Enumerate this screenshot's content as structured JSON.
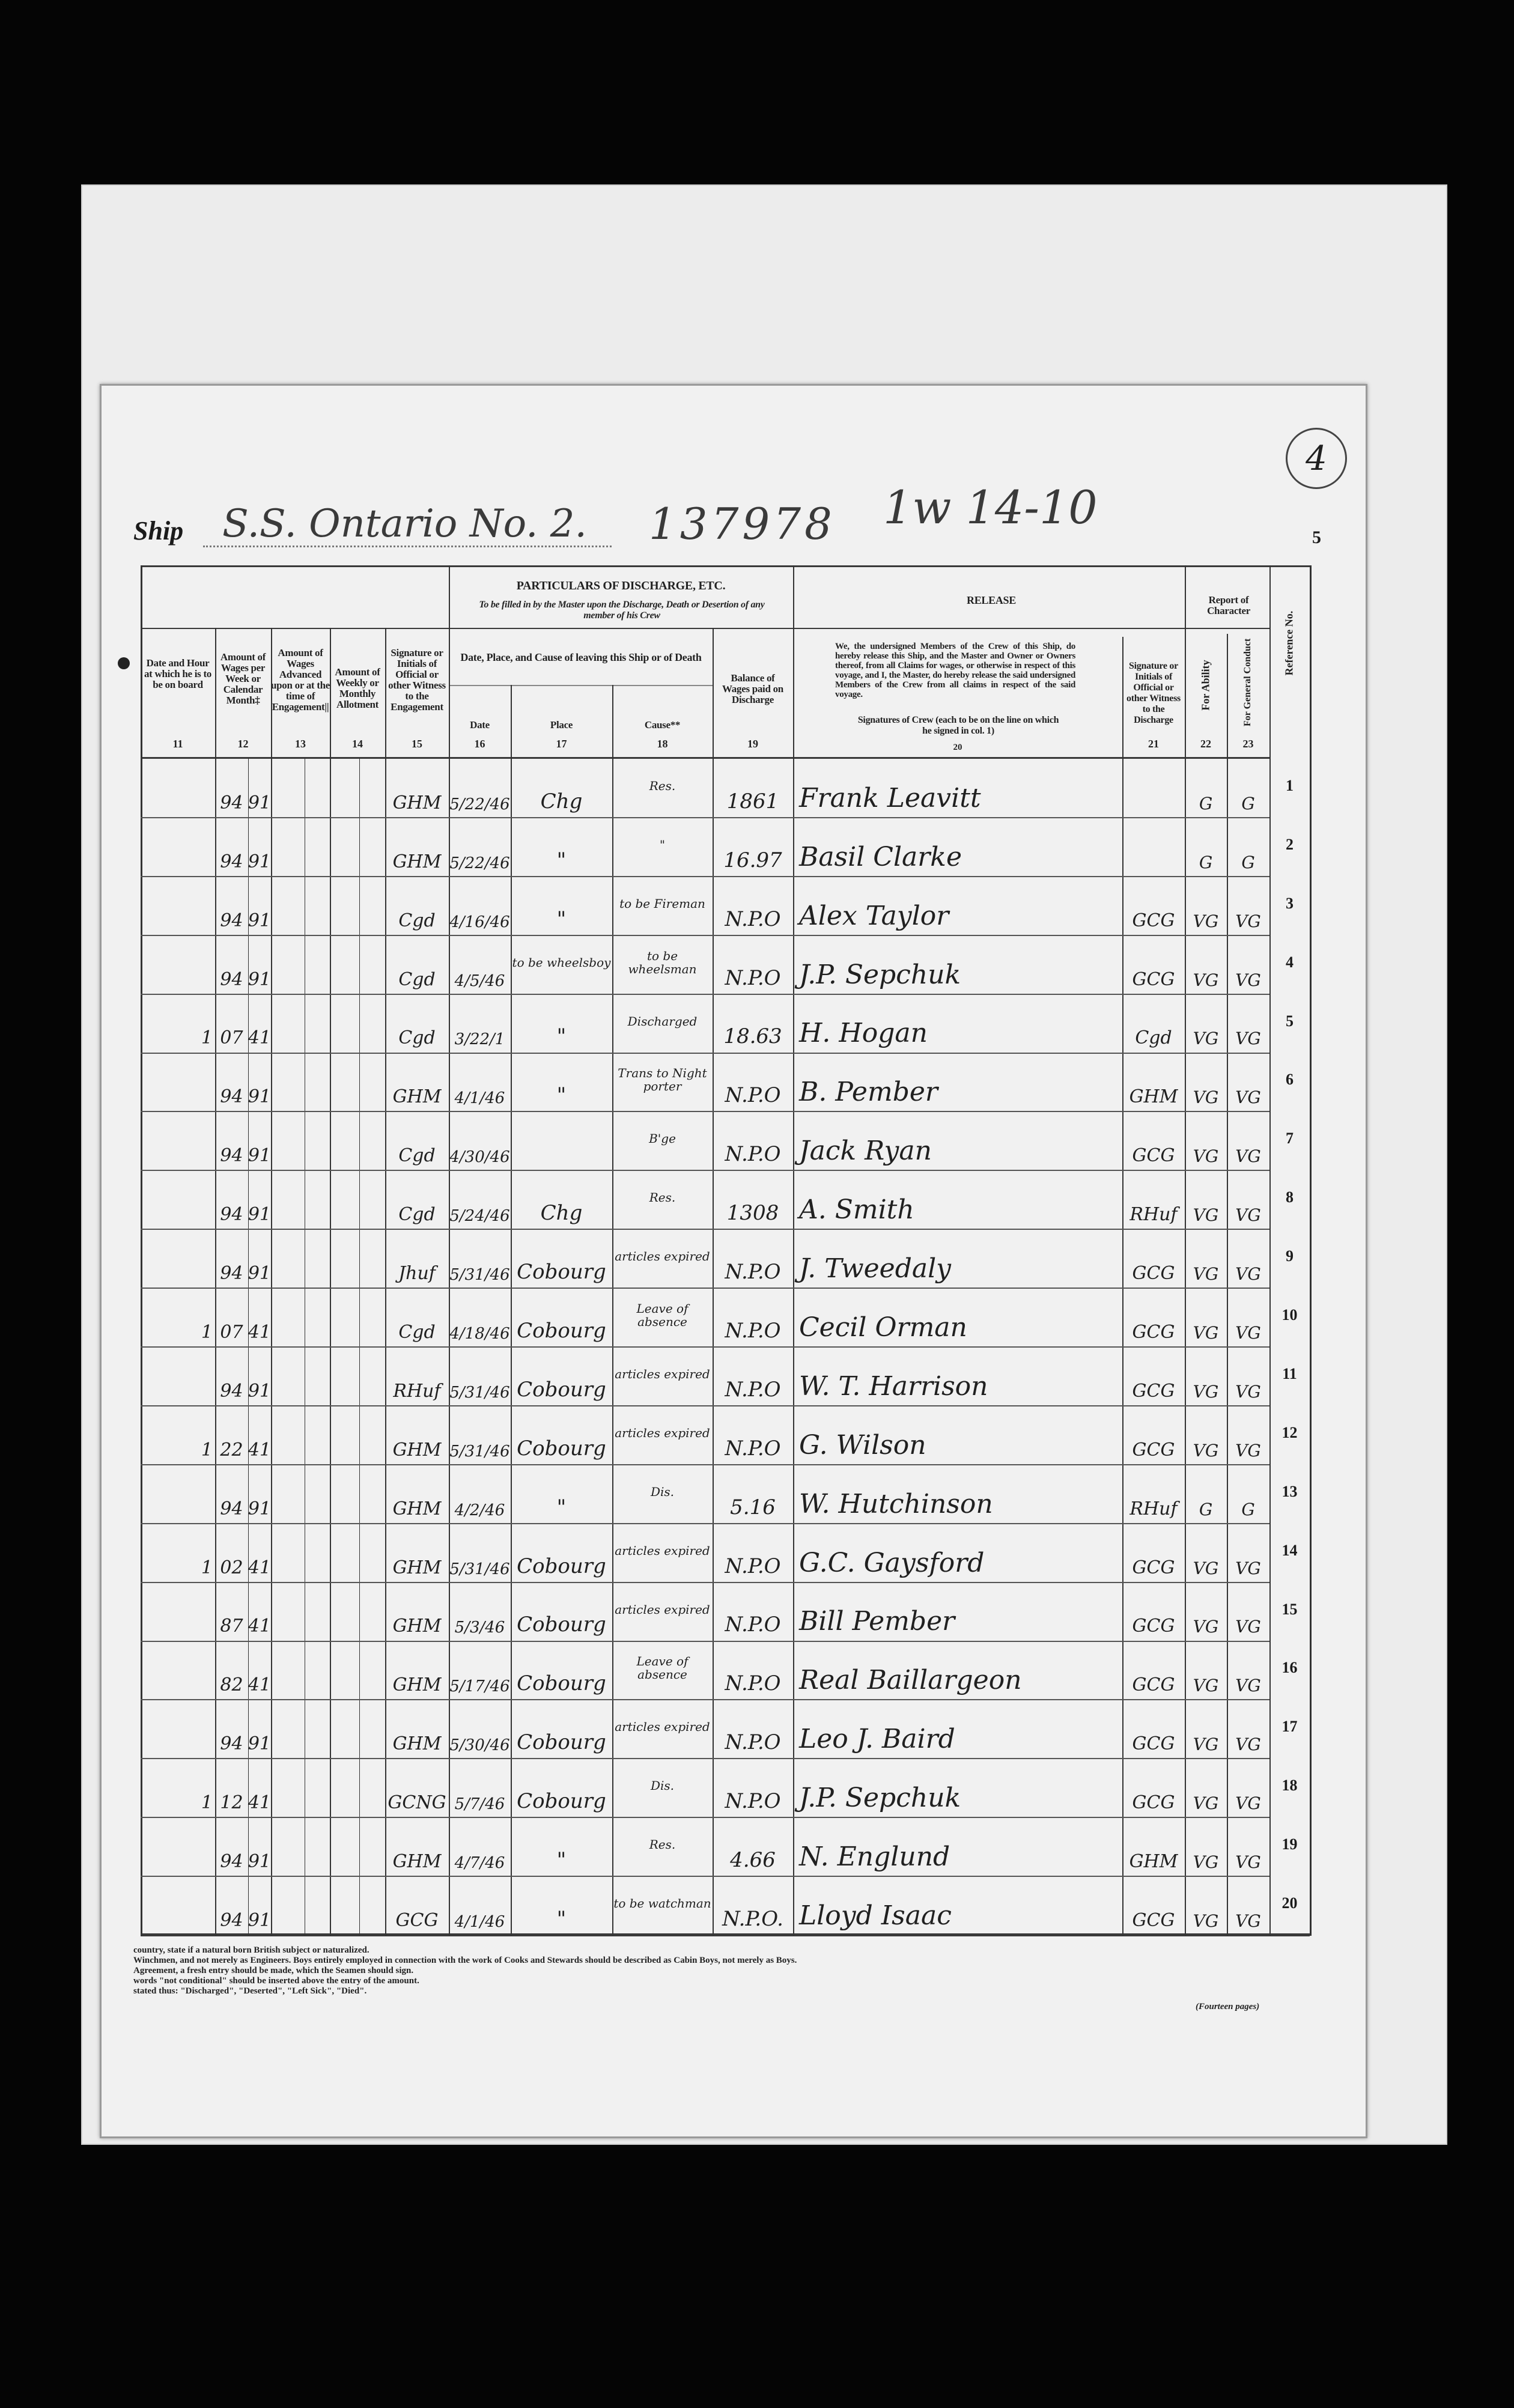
{
  "header": {
    "ship_label": "Ship",
    "ship_name": "S.S. Ontario No. 2.",
    "official_number": "137978",
    "annotation": "1w 14-10",
    "circled_number": "4",
    "page_number": "5"
  },
  "columns": {
    "c11": {
      "label": "Date and Hour at which he is to be on board",
      "number": "11"
    },
    "c12": {
      "label": "Amount of Wages per Week or Calendar Month‡",
      "number": "12"
    },
    "c13": {
      "label": "Amount of Wages Advanced upon or at the time of Engagement||",
      "number": "13"
    },
    "c14": {
      "label": "Amount of Weekly or Monthly Allotment",
      "number": "14"
    },
    "c15": {
      "label": "Signature or Initials of Official or other Witness to the Engagement",
      "number": "15"
    },
    "particulars_title": "PARTICULARS OF DISCHARGE, ETC.",
    "particulars_subtitle": "To be filled in by the Master upon the Discharge, Death or Desertion of any member of his Crew",
    "leaving_title": "Date, Place, and Cause of leaving this Ship or of Death",
    "c16": {
      "label": "Date",
      "number": "16"
    },
    "c17": {
      "label": "Place",
      "number": "17"
    },
    "c18": {
      "label": "Cause**",
      "number": "18"
    },
    "c19": {
      "label": "Balance of Wages paid on Discharge",
      "number": "19"
    },
    "release_title": "RELEASE",
    "release_text": "We, the undersigned Members of the Crew of this Ship, do hereby release this Ship, and the Master and Owner or Owners thereof, from all Claims for wages, or otherwise in respect of this voyage, and I, the Master, do hereby release the said undersigned Members of the Crew from all claims in respect of the said voyage.",
    "c20": {
      "label": "Signatures of Crew (each to be on the line on which he signed in col. 1)",
      "number": "20"
    },
    "c21": {
      "label": "Signature or Initials of Official or other Witness to the Discharge",
      "number": "21"
    },
    "report_title": "Report of Character",
    "c22": {
      "label": "For Ability",
      "number": "22"
    },
    "c23": {
      "label": "For General Conduct",
      "number": "23"
    },
    "ref": {
      "label": "Reference No."
    }
  },
  "rows": [
    {
      "hour": "",
      "wage": "94",
      "cents": "91",
      "witness": "GHM",
      "date": "5/22/46",
      "place": "Chg",
      "cause": "Res.",
      "balance": "1861",
      "signature": "Frank Leavitt",
      "discharge_witness": "",
      "ability": "G",
      "conduct": "G",
      "ref": "1"
    },
    {
      "hour": "",
      "wage": "94",
      "cents": "91",
      "witness": "GHM",
      "date": "5/22/46",
      "place": "\"",
      "cause": "\"",
      "balance": "16.97",
      "signature": "Basil Clarke",
      "discharge_witness": "",
      "ability": "G",
      "conduct": "G",
      "ref": "2"
    },
    {
      "hour": "",
      "wage": "94",
      "cents": "91",
      "witness": "Cgd",
      "date": "4/16/46",
      "place": "\"",
      "cause": "to be Fireman",
      "balance": "N.P.O",
      "signature": "Alex Taylor",
      "discharge_witness": "GCG",
      "ability": "VG",
      "conduct": "VG",
      "ref": "3"
    },
    {
      "hour": "",
      "wage": "94",
      "cents": "91",
      "witness": "Cgd",
      "date": "4/5/46",
      "place": "to be wheelsboy",
      "cause": "to be wheelsman",
      "balance": "N.P.O",
      "signature": "J.P. Sepchuk",
      "discharge_witness": "GCG",
      "ability": "VG",
      "conduct": "VG",
      "ref": "4"
    },
    {
      "hour": "1",
      "wage": "07",
      "cents": "41",
      "witness": "Cgd",
      "date": "3/22/1",
      "place": "\"",
      "cause": "Discharged",
      "balance": "18.63",
      "signature": "H. Hogan",
      "discharge_witness": "Cgd",
      "ability": "VG",
      "conduct": "VG",
      "ref": "5"
    },
    {
      "hour": "",
      "wage": "94",
      "cents": "91",
      "witness": "GHM",
      "date": "4/1/46",
      "place": "\"",
      "cause": "Trans to Night porter",
      "balance": "N.P.O",
      "signature": "B. Pember",
      "discharge_witness": "GHM",
      "ability": "VG",
      "conduct": "VG",
      "ref": "6"
    },
    {
      "hour": "",
      "wage": "94",
      "cents": "91",
      "witness": "Cgd",
      "date": "4/30/46",
      "place": "",
      "cause": "B'ge",
      "balance": "N.P.O",
      "signature": "Jack Ryan",
      "discharge_witness": "GCG",
      "ability": "VG",
      "conduct": "VG",
      "ref": "7"
    },
    {
      "hour": "",
      "wage": "94",
      "cents": "91",
      "witness": "Cgd",
      "date": "5/24/46",
      "place": "Chg",
      "cause": "Res.",
      "balance": "1308",
      "signature": "A. Smith",
      "discharge_witness": "RHuf",
      "ability": "VG",
      "conduct": "VG",
      "ref": "8"
    },
    {
      "hour": "",
      "wage": "94",
      "cents": "91",
      "witness": "Jhuf",
      "date": "5/31/46",
      "place": "Cobourg",
      "cause": "articles expired",
      "balance": "N.P.O",
      "signature": "J. Tweedaly",
      "discharge_witness": "GCG",
      "ability": "VG",
      "conduct": "VG",
      "ref": "9"
    },
    {
      "hour": "1",
      "wage": "07",
      "cents": "41",
      "witness": "Cgd",
      "date": "4/18/46",
      "place": "Cobourg",
      "cause": "Leave of absence",
      "balance": "N.P.O",
      "signature": "Cecil Orman",
      "discharge_witness": "GCG",
      "ability": "VG",
      "conduct": "VG",
      "ref": "10"
    },
    {
      "hour": "",
      "wage": "94",
      "cents": "91",
      "witness": "RHuf",
      "date": "5/31/46",
      "place": "Cobourg",
      "cause": "articles expired",
      "balance": "N.P.O",
      "signature": "W. T. Harrison",
      "discharge_witness": "GCG",
      "ability": "VG",
      "conduct": "VG",
      "ref": "11"
    },
    {
      "hour": "1",
      "wage": "22",
      "cents": "41",
      "witness": "GHM",
      "date": "5/31/46",
      "place": "Cobourg",
      "cause": "articles expired",
      "balance": "N.P.O",
      "signature": "G. Wilson",
      "discharge_witness": "GCG",
      "ability": "VG",
      "conduct": "VG",
      "ref": "12"
    },
    {
      "hour": "",
      "wage": "94",
      "cents": "91",
      "witness": "GHM",
      "date": "4/2/46",
      "place": "\"",
      "cause": "Dis.",
      "balance": "5.16",
      "signature": "W. Hutchinson",
      "discharge_witness": "RHuf",
      "ability": "G",
      "conduct": "G",
      "ref": "13"
    },
    {
      "hour": "1",
      "wage": "02",
      "cents": "41",
      "witness": "GHM",
      "date": "5/31/46",
      "place": "Cobourg",
      "cause": "articles expired",
      "balance": "N.P.O",
      "signature": "G.C. Gaysford",
      "discharge_witness": "GCG",
      "ability": "VG",
      "conduct": "VG",
      "ref": "14"
    },
    {
      "hour": "",
      "wage": "87",
      "cents": "41",
      "witness": "GHM",
      "date": "5/3/46",
      "place": "Cobourg",
      "cause": "articles expired",
      "balance": "N.P.O",
      "signature": "Bill Pember",
      "discharge_witness": "GCG",
      "ability": "VG",
      "conduct": "VG",
      "ref": "15"
    },
    {
      "hour": "",
      "wage": "82",
      "cents": "41",
      "witness": "GHM",
      "date": "5/17/46",
      "place": "Cobourg",
      "cause": "Leave of absence",
      "balance": "N.P.O",
      "signature": "Real Baillargeon",
      "discharge_witness": "GCG",
      "ability": "VG",
      "conduct": "VG",
      "ref": "16"
    },
    {
      "hour": "",
      "wage": "94",
      "cents": "91",
      "witness": "GHM",
      "date": "5/30/46",
      "place": "Cobourg",
      "cause": "articles expired",
      "balance": "N.P.O",
      "signature": "Leo J. Baird",
      "discharge_witness": "GCG",
      "ability": "VG",
      "conduct": "VG",
      "ref": "17"
    },
    {
      "hour": "1",
      "wage": "12",
      "cents": "41",
      "witness": "GCNG",
      "date": "5/7/46",
      "place": "Cobourg",
      "cause": "Dis.",
      "balance": "N.P.O",
      "signature": "J.P. Sepchuk",
      "discharge_witness": "GCG",
      "ability": "VG",
      "conduct": "VG",
      "ref": "18"
    },
    {
      "hour": "",
      "wage": "94",
      "cents": "91",
      "witness": "GHM",
      "date": "4/7/46",
      "place": "\"",
      "cause": "Res.",
      "balance": "4.66",
      "signature": "N. Englund",
      "discharge_witness": "GHM",
      "ability": "VG",
      "conduct": "VG",
      "ref": "19"
    },
    {
      "hour": "",
      "wage": "94",
      "cents": "91",
      "witness": "GCG",
      "date": "4/1/46",
      "place": "\"",
      "cause": "to be watchman",
      "balance": "N.P.O.",
      "signature": "Lloyd Isaac",
      "discharge_witness": "GCG",
      "ability": "VG",
      "conduct": "VG",
      "ref": "20"
    }
  ],
  "footnotes": [
    "country, state if a natural born British subject or naturalized.",
    "Winchmen, and not merely as Engineers.   Boys entirely employed in connection with the work of Cooks and Stewards should be described as Cabin Boys, not merely as Boys.",
    "Agreement, a fresh entry should be made, which the Seamen should sign.",
    "words \"not conditional\" should be inserted above the entry of the amount.",
    "stated thus: \"Discharged\", \"Deserted\", \"Left Sick\", \"Died\"."
  ],
  "page_count_note": "(Fourteen pages)"
}
